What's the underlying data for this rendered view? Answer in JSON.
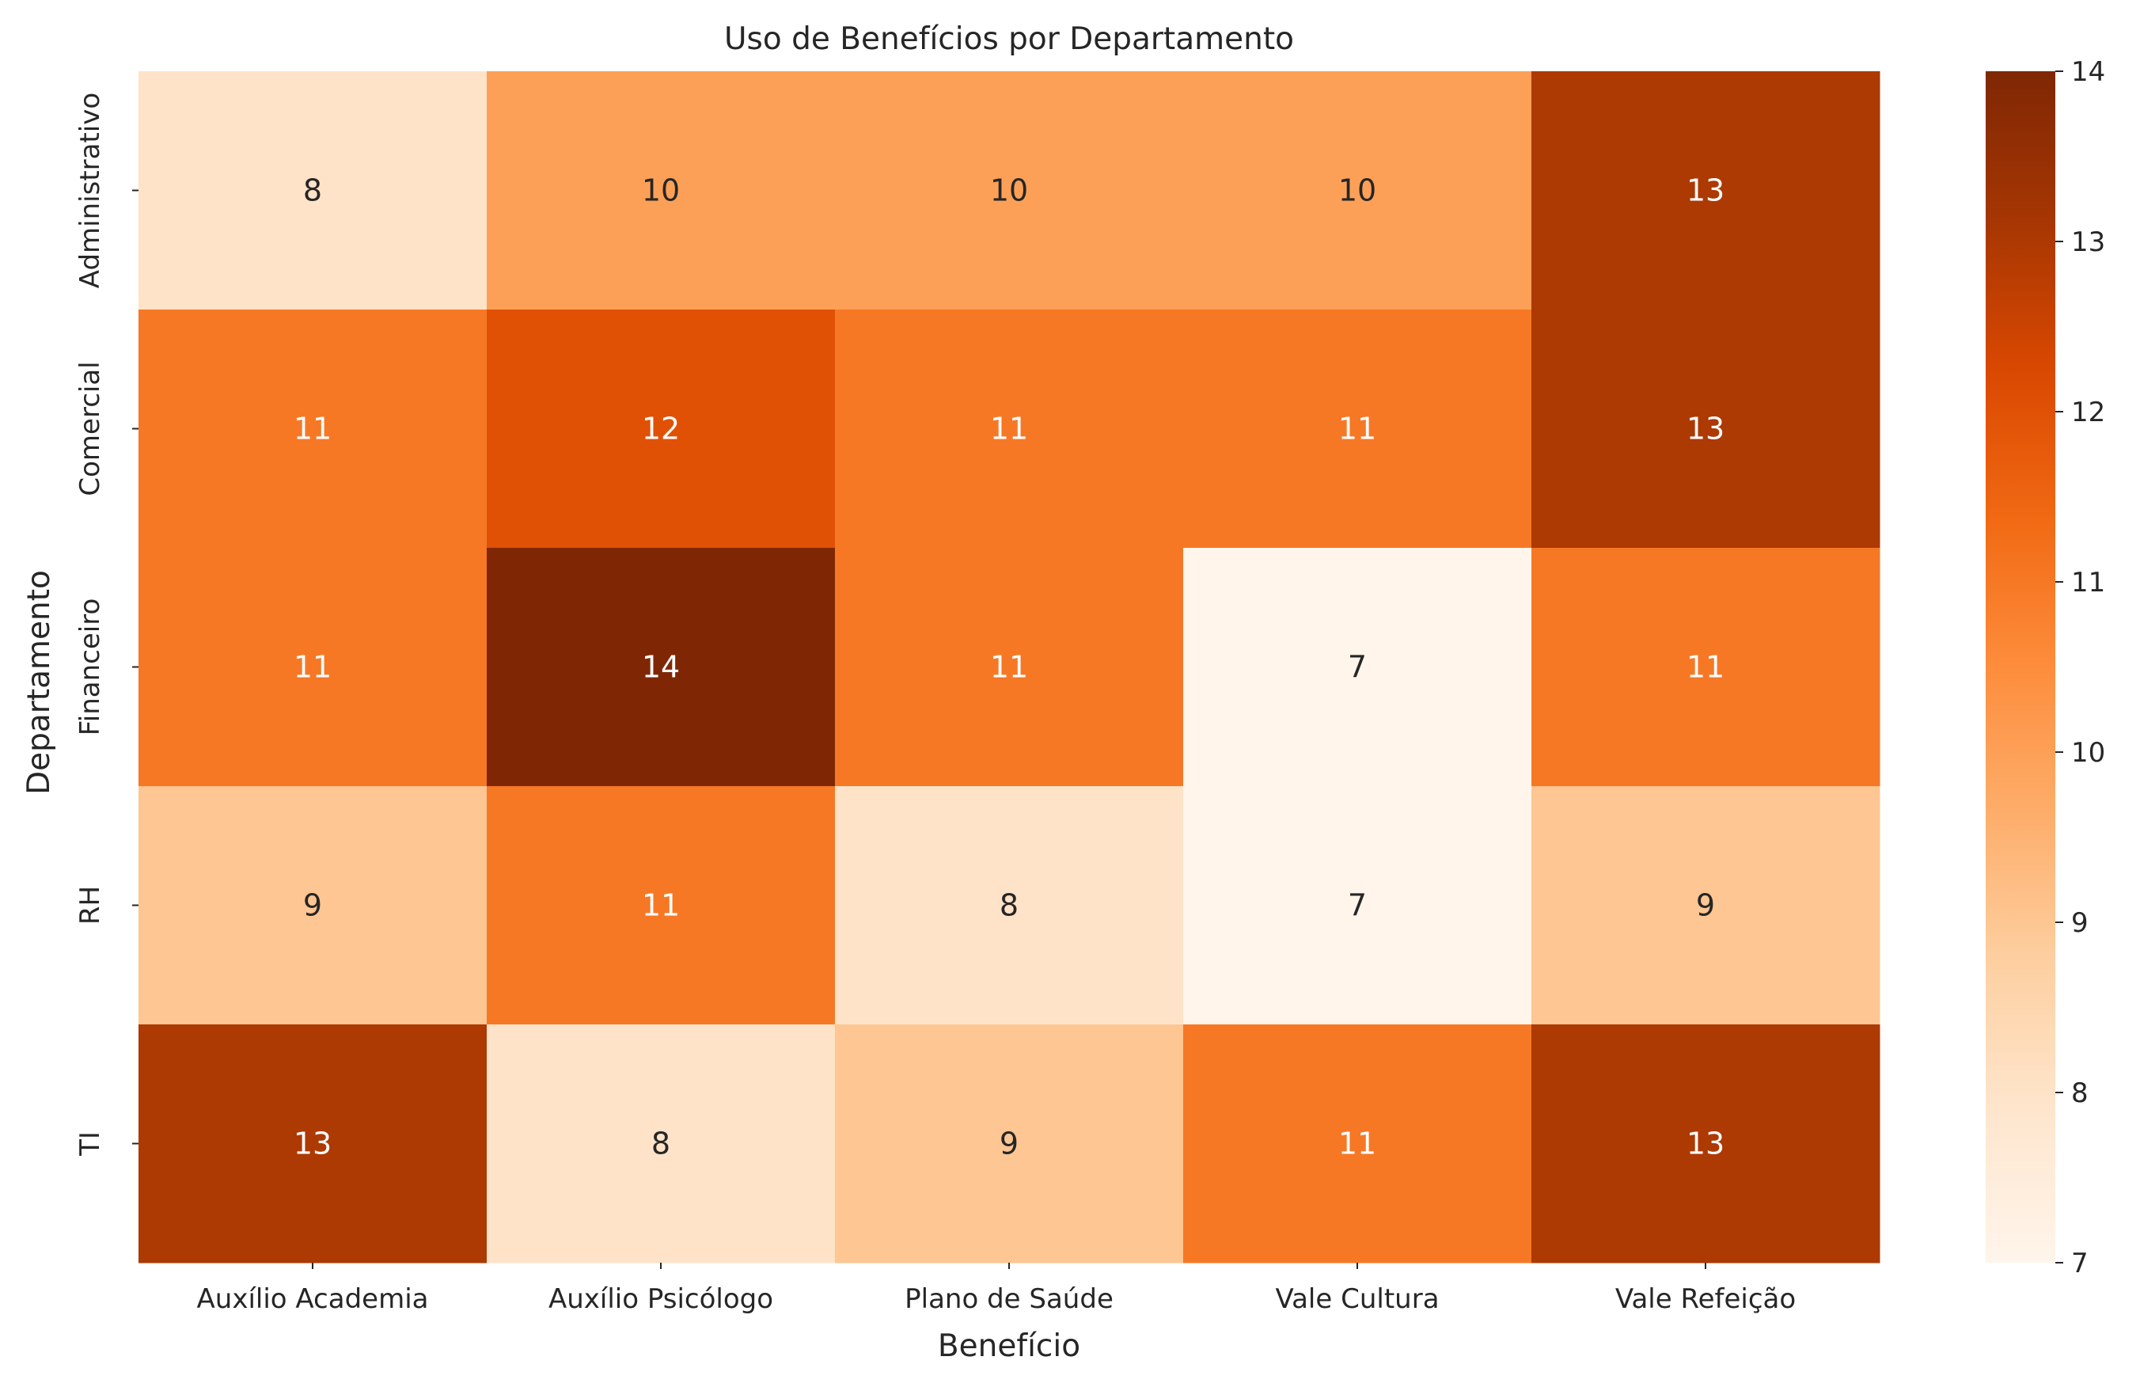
{
  "chart_data": {
    "type": "heatmap",
    "title": "Uso de Benefícios por Departamento",
    "xlabel": "Benefício",
    "ylabel": "Departamento",
    "x_categories": [
      "Auxílio Academia",
      "Auxílio Psicólogo",
      "Plano de Saúde",
      "Vale Cultura",
      "Vale Refeição"
    ],
    "y_categories": [
      "Administrativo",
      "Comercial",
      "Financeiro",
      "RH",
      "TI"
    ],
    "values": [
      [
        8,
        10,
        10,
        10,
        13
      ],
      [
        11,
        12,
        11,
        11,
        13
      ],
      [
        11,
        14,
        11,
        7,
        11
      ],
      [
        9,
        11,
        8,
        7,
        9
      ],
      [
        13,
        8,
        9,
        11,
        13
      ]
    ],
    "colorbar": {
      "range": [
        7,
        14
      ],
      "ticks": [
        "7",
        "8",
        "9",
        "10",
        "11",
        "12",
        "13",
        "14"
      ],
      "colormap": "Oranges",
      "colors": [
        "#fff5eb",
        "#fee6ce",
        "#fdd0a2",
        "#fdae6b",
        "#fd8d3c",
        "#f16913",
        "#d94801",
        "#a63603",
        "#7f2704"
      ]
    },
    "annotations": true
  }
}
